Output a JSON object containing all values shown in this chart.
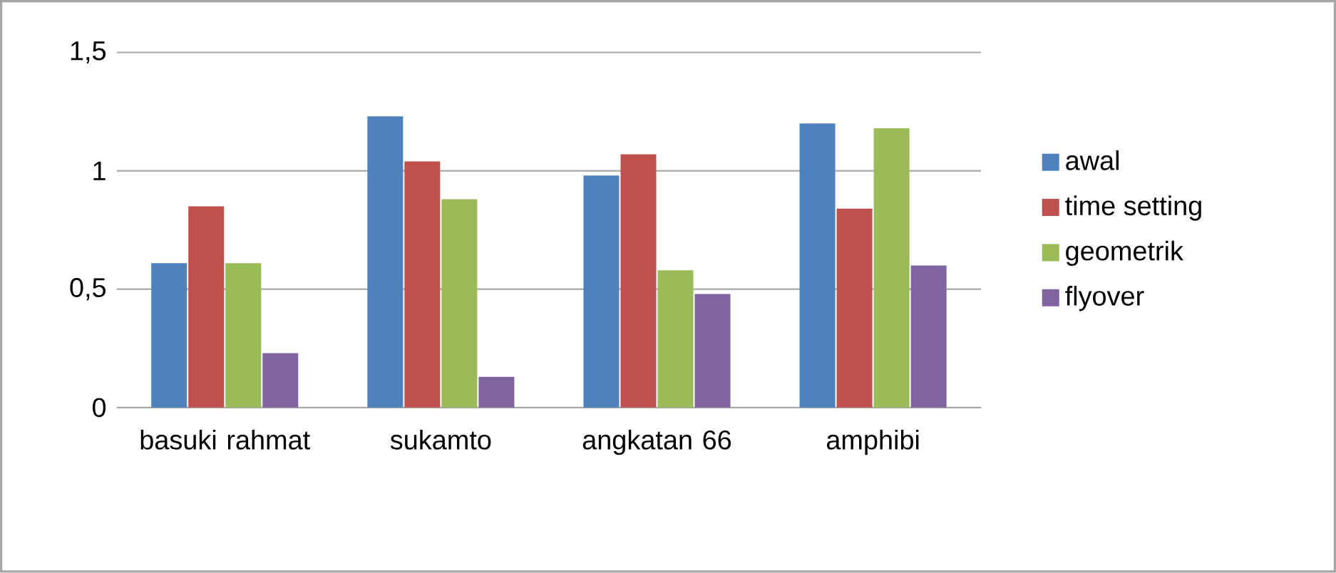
{
  "chart_data": {
    "type": "bar",
    "categories": [
      "basuki rahmat",
      "sukamto",
      "angkatan 66",
      "amphibi"
    ],
    "series": [
      {
        "name": "awal",
        "color": "#4f81bd",
        "values": [
          0.61,
          1.23,
          0.98,
          1.2
        ]
      },
      {
        "name": "time setting",
        "color": "#c0504d",
        "values": [
          0.85,
          1.04,
          1.07,
          0.84
        ]
      },
      {
        "name": "geometrik",
        "color": "#9bbb59",
        "values": [
          0.61,
          0.88,
          0.58,
          1.18
        ]
      },
      {
        "name": "flyover",
        "color": "#8064a2",
        "values": [
          0.23,
          0.13,
          0.48,
          0.6
        ]
      }
    ],
    "ylim": [
      0,
      1.5
    ],
    "yticks": [
      0,
      {
        "value": 0.5,
        "label": "0,5"
      },
      1,
      {
        "value": 1.5,
        "label": "1,5"
      }
    ],
    "grid": "y",
    "legend": "right"
  }
}
